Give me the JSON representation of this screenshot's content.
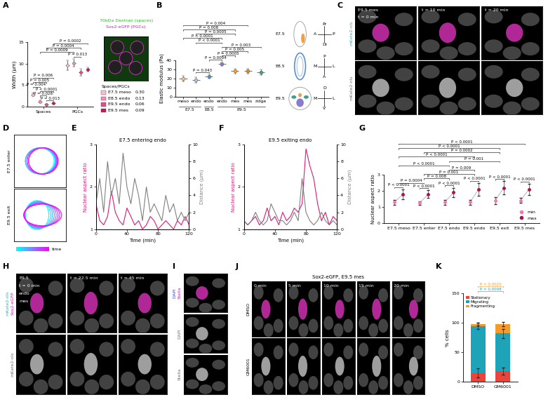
{
  "chart_data": [
    {
      "panel": "A",
      "type": "dot",
      "ylabel": "Width (µm)",
      "ylim": [
        0,
        15
      ],
      "yticks": [
        0,
        5,
        10,
        15
      ],
      "groups": [
        "Spaces",
        "PGCs"
      ],
      "series": [
        {
          "name": "E7.5 meso",
          "color": "#f6bfd0",
          "values": [
            2.8,
            9.6
          ],
          "errors": [
            0.4,
            1.1
          ],
          "ratio": {
            "value": 0.3,
            "label": "0.30"
          }
        },
        {
          "name": "E8.5 endo",
          "color": "#ec8fb2",
          "values": [
            1.2,
            10.2
          ],
          "errors": [
            0.2,
            0.9
          ],
          "ratio": {
            "value": 0.13,
            "label": "0.13"
          }
        },
        {
          "name": "E9.5 endo",
          "color": "#dd4f8c",
          "values": [
            0.5,
            8.0
          ],
          "errors": [
            0.1,
            0.8
          ],
          "ratio": {
            "value": 0.06,
            "label": "0.06"
          }
        },
        {
          "name": "E9.5 mes",
          "color": "#c2185b",
          "values": [
            0.8,
            8.6
          ],
          "errors": [
            0.15,
            0.5
          ],
          "ratio": {
            "value": 0.09,
            "label": "0.09"
          }
        }
      ],
      "ratio_title": "Spaces/PGCs",
      "annotations": [
        {
          "text": "P = 0.013",
          "pair": [
            2,
            3
          ]
        },
        {
          "text": "P = 0.028",
          "pair": [
            1,
            2
          ]
        },
        {
          "text": "P < 0.0001",
          "pair": [
            1,
            3
          ]
        },
        {
          "text": "P = 0.004",
          "pair": [
            0,
            1
          ]
        },
        {
          "text": "P = 0.005",
          "pair": [
            0,
            2
          ]
        },
        {
          "text": "P = 0.006",
          "pair": [
            0,
            3
          ]
        },
        {
          "text": "P = 0.013",
          "pair": [
            5,
            6
          ]
        },
        {
          "text": "P = 0.0009",
          "pair": [
            1,
            5
          ]
        },
        {
          "text": "P = 0.0004",
          "pair": [
            2,
            6
          ]
        },
        {
          "text": "P = 0.0002",
          "pair": [
            3,
            7
          ]
        }
      ],
      "inset": [
        {
          "text": "70kDa Dextran (spaces)",
          "color": "#2fb82f"
        },
        {
          "text": "Sox2-eGFP (PGCs)",
          "color": "#d020b8"
        }
      ]
    },
    {
      "panel": "B",
      "type": "dot",
      "ylabel": "Elastic modulus (Pa)",
      "ylim": [
        0,
        40
      ],
      "yticks": [
        0,
        10,
        20,
        30,
        40
      ],
      "categories": [
        "meso",
        "endo",
        "endo",
        "endo",
        "mes",
        "mes",
        "ridge"
      ],
      "values": [
        20,
        18,
        22,
        36,
        28,
        28,
        27
      ],
      "errors": [
        3,
        3,
        2.5,
        2,
        3,
        3,
        3
      ],
      "colors": [
        "#e8c48a",
        "#a8c4e8",
        "#5a8fd0",
        "#8a7ad0",
        "#f0a040",
        "#e8862a",
        "#40a090"
      ],
      "stages": [
        {
          "label": "E7.5",
          "span": [
            0,
            1
          ]
        },
        {
          "label": "E8.5",
          "span": [
            2,
            2
          ]
        },
        {
          "label": "E9.5",
          "span": [
            3,
            6
          ]
        }
      ],
      "annotations": [
        {
          "text": "P = 0.043",
          "pair": [
            1,
            2
          ]
        },
        {
          "text": "P = 0.0004",
          "pair": [
            2,
            3
          ]
        },
        {
          "text": "P = 0.0005",
          "pair": [
            3,
            4
          ]
        },
        {
          "text": "P = 0.005",
          "pair": [
            3,
            5
          ]
        },
        {
          "text": "P = 0.003",
          "pair": [
            3,
            6
          ]
        },
        {
          "text": "P < 0.0001",
          "pair": [
            1,
            3
          ]
        },
        {
          "text": "P < 0.0001",
          "pair": [
            0,
            3
          ]
        },
        {
          "text": "P = 0.0005",
          "pair": [
            1,
            4
          ]
        },
        {
          "text": "P = 0.008",
          "pair": [
            0,
            4
          ]
        },
        {
          "text": "P = 0.004",
          "pair": [
            0,
            5
          ]
        }
      ],
      "diagram": [
        {
          "stage": "E7.5",
          "directions": [
            "Pr",
            "Di",
            "A",
            "P"
          ]
        },
        {
          "stage": "E8.5",
          "directions": [
            "P",
            "A",
            "M",
            "L"
          ]
        },
        {
          "stage": "E9.5",
          "directions": [
            "D",
            "V",
            "M",
            "L"
          ]
        }
      ]
    },
    {
      "panel": "E",
      "type": "line",
      "title": "E7.5 entering endo",
      "xlabel": "Time (min)",
      "ylabel": "Nuclear aspect ratio",
      "y2label": "Distance (µm)",
      "x": [
        0,
        5,
        10,
        15,
        20,
        25,
        30,
        35,
        40,
        45,
        50,
        55,
        60,
        65,
        70,
        75,
        80,
        85,
        90,
        95,
        100,
        105,
        110,
        115,
        120
      ],
      "xlim": [
        0,
        120
      ],
      "xticks": [
        0,
        40,
        80,
        120
      ],
      "ylim": [
        1,
        3
      ],
      "yticks": [
        1,
        2,
        3
      ],
      "y2lim": [
        0,
        10
      ],
      "y2ticks": [
        0,
        2,
        4,
        6,
        8,
        10
      ],
      "series": [
        {
          "color": "#e0187a",
          "values": [
            1.6,
            1.2,
            1.1,
            1.3,
            1.9,
            1.4,
            1.2,
            1.1,
            1.5,
            1.3,
            1.1,
            1.2,
            1.0,
            1.1,
            1.3,
            1.2,
            1.0,
            1.1,
            1.2,
            1.1,
            1.0,
            1.2,
            1.1,
            1.3,
            1.1
          ]
        },
        {
          "color": "#808080",
          "axis": "y2",
          "values": [
            3,
            6,
            2,
            8,
            4,
            6,
            3,
            9,
            5,
            3,
            6,
            4,
            1,
            5,
            2,
            3,
            2,
            1,
            4,
            2,
            3,
            1,
            2,
            1,
            2
          ]
        }
      ]
    },
    {
      "panel": "F",
      "type": "line",
      "title": "E9.5 exiting endo",
      "xlabel": "Time (min)",
      "ylabel": "Nuclear aspect ratio",
      "y2label": "Distance (µm)",
      "x": [
        0,
        5,
        10,
        15,
        20,
        25,
        30,
        35,
        40,
        45,
        50,
        55,
        60,
        65,
        70,
        75,
        80,
        85,
        90,
        95,
        100,
        105,
        110,
        115,
        120
      ],
      "xlim": [
        0,
        120
      ],
      "xticks": [
        0,
        40,
        80,
        120
      ],
      "ylim": [
        1,
        3
      ],
      "yticks": [
        1,
        2,
        3
      ],
      "y2lim": [
        0,
        10
      ],
      "y2ticks": [
        0,
        2,
        4,
        6,
        8,
        10
      ],
      "series": [
        {
          "color": "#e0187a",
          "values": [
            1.2,
            1.1,
            1.2,
            1.3,
            1.1,
            1.2,
            1.5,
            1.2,
            1.3,
            1.1,
            1.4,
            1.2,
            1.3,
            1.5,
            1.4,
            1.6,
            2.9,
            2.5,
            2.2,
            1.6,
            1.2,
            1.4,
            1.1,
            1.3,
            1.2
          ]
        },
        {
          "color": "#808080",
          "axis": "y2",
          "values": [
            1,
            0.5,
            1,
            2,
            1,
            0.5,
            1,
            3,
            2,
            1,
            1,
            0.5,
            1,
            2,
            1,
            6,
            2,
            1,
            0.5,
            1,
            2,
            1,
            0.5,
            1,
            0.5
          ]
        }
      ]
    },
    {
      "panel": "G",
      "type": "dot",
      "ylabel": "Nuclear aspect ratio",
      "ylim": [
        0,
        3
      ],
      "yticks": [
        0,
        1,
        2,
        3
      ],
      "categories": [
        "E7.5 meso",
        "E7.5 enter",
        "E7.5 endo",
        "E9.5 endo",
        "E9.5 exit",
        "E9.5 mes"
      ],
      "series": [
        {
          "name": "min",
          "color": "#f07ab0",
          "values": [
            1.3,
            1.25,
            1.3,
            1.3,
            1.4,
            1.4
          ],
          "errors": [
            0.15,
            0.12,
            0.15,
            0.15,
            0.2,
            0.15
          ]
        },
        {
          "name": "max",
          "color": "#a8124f",
          "values": [
            1.8,
            1.8,
            1.9,
            2.1,
            2.2,
            2.1
          ],
          "errors": [
            0.3,
            0.25,
            0.3,
            0.4,
            0.4,
            0.35
          ]
        }
      ],
      "legend": "lower right",
      "within_annotations": [
        "P < 0.0001",
        "P < 0.0001",
        "P < 0.0001",
        "P < 0.0001",
        "P < 0.0001",
        "P < 0.0001"
      ],
      "annotations": [
        {
          "text": "P = 0.0004",
          "pair": [
            0,
            1
          ]
        },
        {
          "text": "P = 0.008",
          "pair": [
            1,
            2
          ]
        },
        {
          "text": "P = 0.001",
          "pair": [
            1,
            3
          ]
        },
        {
          "text": "P = 0.009",
          "pair": [
            2,
            3
          ]
        },
        {
          "text": "P < 0.0001",
          "pair": [
            0,
            2
          ]
        },
        {
          "text": "P = 0.001",
          "pair": [
            2,
            4
          ]
        },
        {
          "text": "P < 0.0001",
          "pair": [
            0,
            3
          ]
        },
        {
          "text": "P = 0.0002",
          "pair": [
            1,
            4
          ]
        },
        {
          "text": "P < 0.0001",
          "pair": [
            0,
            4
          ]
        },
        {
          "text": "P < 0.0001",
          "pair": [
            0,
            5
          ]
        }
      ]
    },
    {
      "panel": "K",
      "type": "bar",
      "stacked": true,
      "ylabel": "% cells",
      "ylim": [
        0,
        150
      ],
      "yticks": [
        0,
        50,
        100,
        150
      ],
      "categories": [
        "DMSO",
        "GM6001"
      ],
      "series": [
        {
          "name": "Stationary",
          "color": "#e8453c",
          "values": [
            15,
            18
          ],
          "errors": [
            8,
            6
          ]
        },
        {
          "name": "Migrating",
          "color": "#1fa3b8",
          "values": [
            80,
            64
          ],
          "errors": [
            5,
            8
          ]
        },
        {
          "name": "Fragmenting",
          "color": "#f29a2e",
          "values": [
            3,
            16
          ],
          "errors": [
            2,
            4
          ]
        }
      ],
      "legend": "upper left",
      "annotations": [
        {
          "text": "P = 0.0008",
          "series": "Migrating",
          "pair": [
            0,
            1
          ]
        },
        {
          "text": "P = 0.0025",
          "series": "Fragmenting",
          "pair": [
            0,
            1
          ]
        }
      ]
    }
  ],
  "images": [
    {
      "panel": "C",
      "rows": [
        {
          "labels": [
            {
              "text": "mKate2-nls",
              "color": "#2bb5b5"
            }
          ],
          "frames": [
            [
              "E9.5 mes",
              "t = 0 min"
            ],
            [
              "t = 10 min"
            ],
            [
              "t = 20 min"
            ]
          ]
        },
        {
          "labels": [
            {
              "text": "mKate2-nls",
              "color": "#707070"
            }
          ],
          "frames": [
            [],
            [],
            []
          ]
        }
      ]
    },
    {
      "panel": "D",
      "rows": [
        {
          "labels": [
            {
              "text": "E7.5 enter",
              "color": "#000000"
            }
          ],
          "frames": [
            []
          ]
        },
        {
          "labels": [
            {
              "text": "E9.5 exit",
              "color": "#000000"
            }
          ],
          "frames": [
            []
          ]
        }
      ],
      "colorbar_label": "time"
    },
    {
      "panel": "H",
      "rows": [
        {
          "labels": [
            {
              "text": "Sox2-eGFP",
              "color": "#d020b8"
            },
            {
              "text": "mKate2-nls",
              "color": "#2bb5b5"
            }
          ],
          "frames": [
            [
              "E9.5",
              "t = 0 min",
              "endo",
              "mes"
            ],
            [
              "t = 22.5 min"
            ],
            [
              "t = 45 min"
            ]
          ]
        },
        {
          "labels": [
            {
              "text": "mKate2-nls",
              "color": "#707070"
            }
          ],
          "frames": [
            [],
            [],
            []
          ]
        }
      ]
    },
    {
      "panel": "I",
      "rows": [
        {
          "labels": [
            {
              "text": "Stella",
              "color": "#d020b8"
            },
            {
              "text": "DAPI",
              "color": "#3040d0"
            }
          ],
          "frames": [
            []
          ]
        },
        {
          "labels": [
            {
              "text": "DAPI",
              "color": "#707070"
            }
          ],
          "frames": [
            []
          ]
        },
        {
          "labels": [
            {
              "text": "Stella",
              "color": "#707070"
            }
          ],
          "frames": [
            []
          ]
        }
      ]
    },
    {
      "panel": "J",
      "title": "Sox2-eGFP, E9.5 mes",
      "rows": [
        {
          "labels": [
            {
              "text": "DMSO",
              "color": "#000000"
            }
          ],
          "frames": [
            [
              "0 min"
            ],
            [
              "5 min"
            ],
            [
              "10 min"
            ],
            [
              "15 min"
            ],
            [
              "20 min"
            ]
          ]
        },
        {
          "labels": [
            {
              "text": "GM6001",
              "color": "#000000"
            }
          ],
          "frames": [
            [],
            [],
            [],
            [],
            []
          ]
        }
      ]
    }
  ]
}
